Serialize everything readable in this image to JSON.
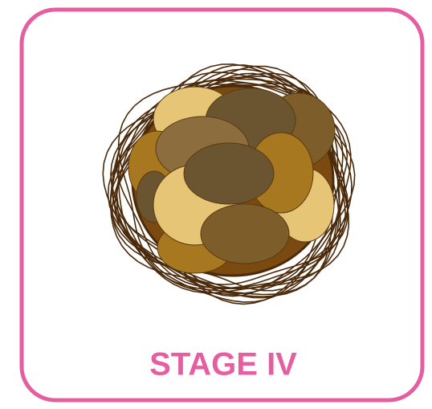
{
  "label": "STAGE IV"
}
